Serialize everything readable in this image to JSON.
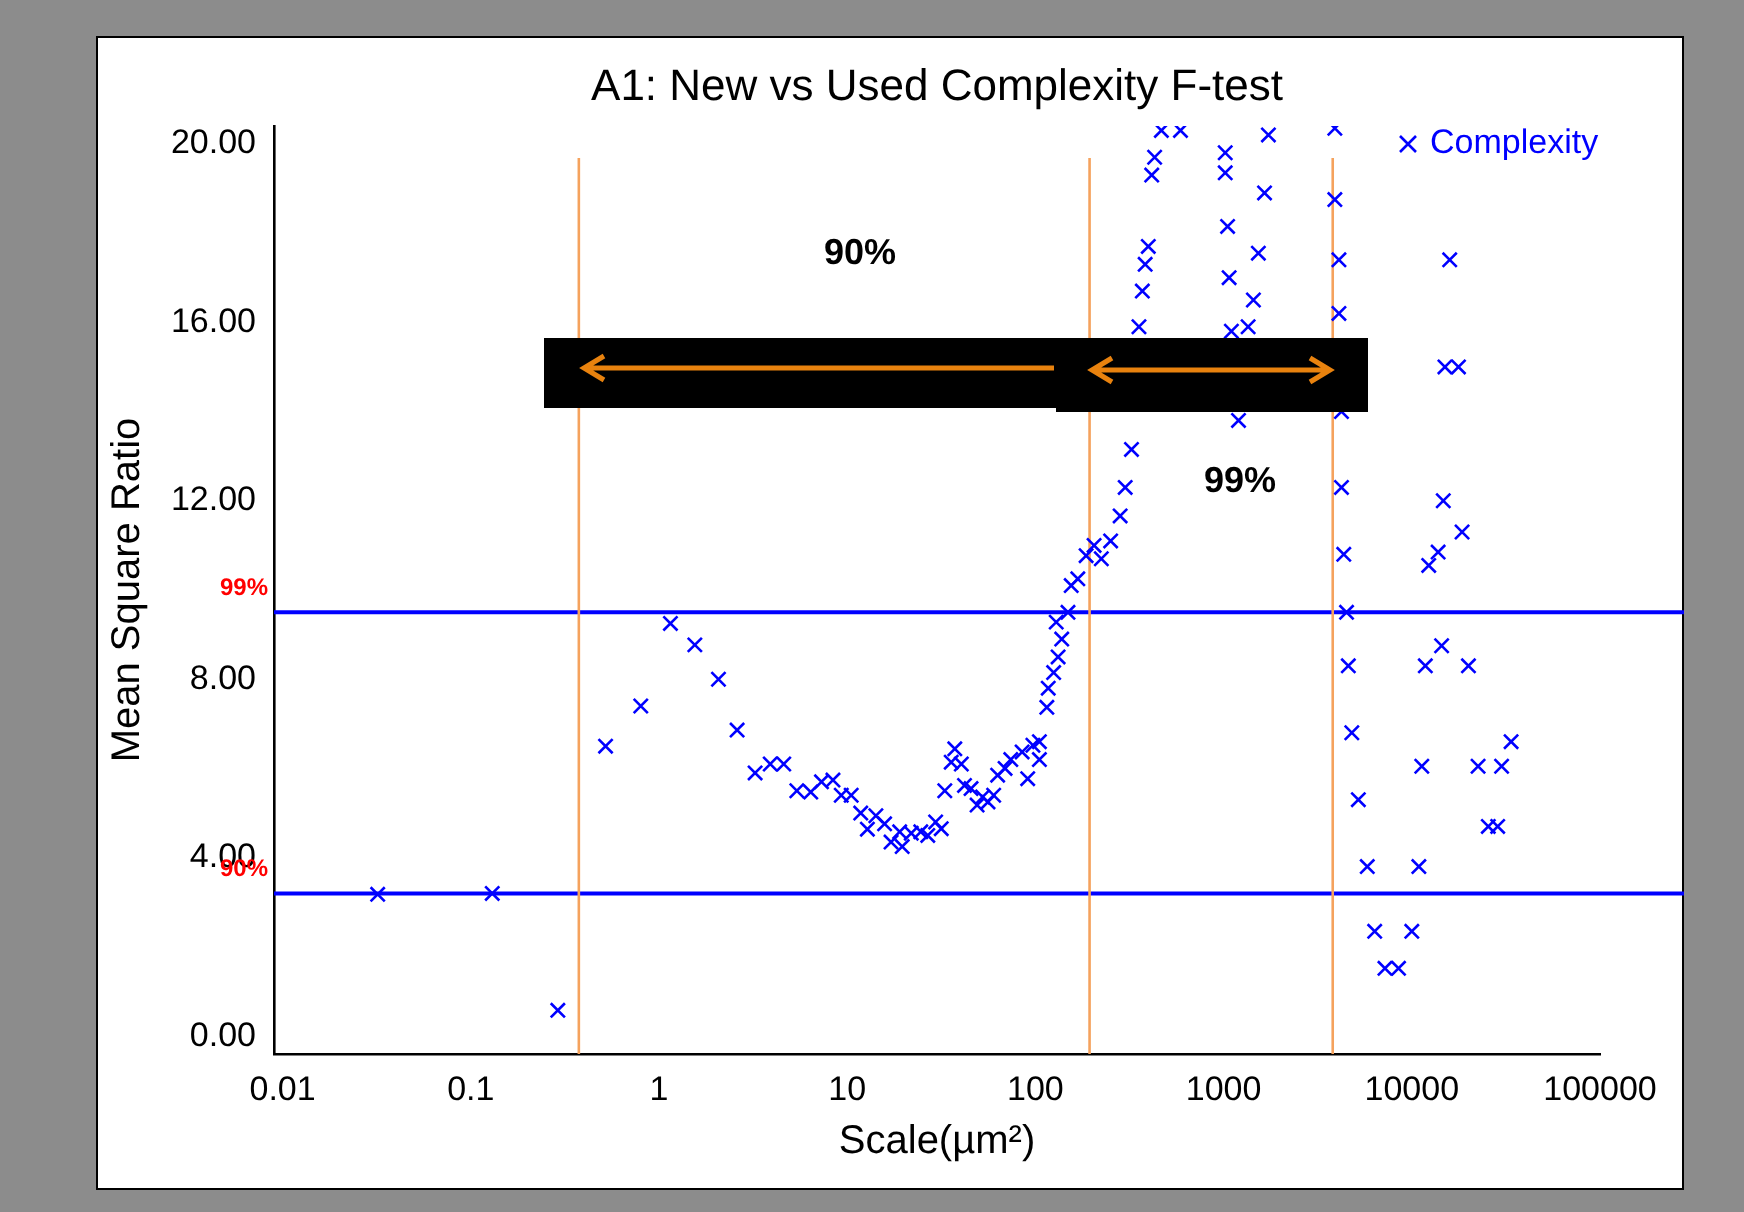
{
  "chart_data": {
    "type": "scatter",
    "title": "A1: New vs Used Complexity F-test",
    "xlabel": "Scale(µm²)",
    "ylabel": "Mean Square Ratio",
    "log": "x",
    "xlim": [
      0.009,
      100000
    ],
    "xticks": [
      0.01,
      0.1,
      1,
      10,
      100,
      1000,
      10000,
      100000
    ],
    "ylim": [
      -0.4,
      20.4
    ],
    "yticks": [
      {
        "value": 0,
        "label": "0.00"
      },
      {
        "value": 4,
        "label": "4.00"
      },
      {
        "value": 8,
        "label": "8.00"
      },
      {
        "value": 12,
        "label": "12.00"
      },
      {
        "value": 16,
        "label": "16.00"
      },
      {
        "value": 20,
        "label": "20.00"
      }
    ],
    "marker": "cross",
    "legend": "top right",
    "grid": false,
    "series": [
      {
        "name": "Complexity",
        "color": "#0000ff",
        "x": [
          0.032,
          0.13,
          0.29,
          0.52,
          0.8,
          1.15,
          1.55,
          2.07,
          2.6,
          3.24,
          3.9,
          4.6,
          5.4,
          6.4,
          7.3,
          8.4,
          9.3,
          10.5,
          11.8,
          12.8,
          14.2,
          15.8,
          17.1,
          19.6,
          19,
          21.9,
          24.6,
          26.8,
          29.5,
          31.6,
          33,
          35.7,
          37.3,
          40.4,
          42,
          45.5,
          49,
          52.4,
          56,
          60,
          63,
          69,
          74,
          85,
          91,
          97,
          105,
          105,
          115,
          117,
          125,
          132,
          138,
          129,
          149,
          155,
          168,
          186,
          205,
          224,
          251,
          282,
          300,
          324,
          355,
          370,
          383,
          398,
          415,
          430,
          467,
          590,
          1020,
          1020,
          1050,
          1070,
          1100,
          1200,
          1350,
          1440,
          1530,
          1650,
          1730,
          3900,
          3900,
          4100,
          4100,
          4230,
          4230,
          4350,
          4500,
          4600,
          4800,
          5200,
          5800,
          6350,
          7200,
          8500,
          10000,
          10900,
          11300,
          11800,
          12300,
          13800,
          14400,
          14700,
          15000,
          15900,
          17700,
          18500,
          20000,
          22500,
          25500,
          28600,
          30000,
          33700
        ],
        "values": [
          3.18,
          3.2,
          0.58,
          6.5,
          7.4,
          9.25,
          8.77,
          8.0,
          6.86,
          5.9,
          6.1,
          6.1,
          5.5,
          5.47,
          5.7,
          5.74,
          5.4,
          5.4,
          5.0,
          4.64,
          4.94,
          4.76,
          4.35,
          4.25,
          4.58,
          4.55,
          4.58,
          4.5,
          4.8,
          4.65,
          5.5,
          6.14,
          6.44,
          6.1,
          5.62,
          5.55,
          5.18,
          5.36,
          5.25,
          5.4,
          5.85,
          6.0,
          6.2,
          6.37,
          5.77,
          6.52,
          6.6,
          6.2,
          7.37,
          7.8,
          8.15,
          8.5,
          8.9,
          9.28,
          9.5,
          10.1,
          10.25,
          10.77,
          11.0,
          10.7,
          11.1,
          11.66,
          12.3,
          13.15,
          15.9,
          16.7,
          17.3,
          17.7,
          19.3,
          19.7,
          20.3,
          20.3,
          19.8,
          19.35,
          18.15,
          17.0,
          15.8,
          13.8,
          15.9,
          16.5,
          17.55,
          18.9,
          20.2,
          20.35,
          18.75,
          17.4,
          16.2,
          14.0,
          12.3,
          10.8,
          9.5,
          8.3,
          6.8,
          5.3,
          3.8,
          2.35,
          1.52,
          1.52,
          2.35,
          3.8,
          6.05,
          8.3,
          10.55,
          10.85,
          8.75,
          12.0,
          15.0,
          17.4,
          15.0,
          11.3,
          8.3,
          6.05,
          4.7,
          4.7,
          6.05,
          6.6
        ]
      }
    ],
    "ref_lines": [
      {
        "axis": "y",
        "value": 9.5,
        "color": "#0000ff"
      },
      {
        "axis": "y",
        "value": 3.2,
        "color": "#0000ff"
      },
      {
        "axis": "x",
        "value": 0.375,
        "color": "#f5a25d"
      },
      {
        "axis": "x",
        "value": 194,
        "color": "#f5a25d"
      },
      {
        "axis": "x",
        "value": 3800,
        "color": "#f5a25d"
      }
    ],
    "annotations": [
      "90%",
      "99%",
      {
        "text": "99%",
        "x": 0.009,
        "y": 9.5
      },
      {
        "text": "90%",
        "x": 0.009,
        "y": 3.2
      }
    ]
  }
}
